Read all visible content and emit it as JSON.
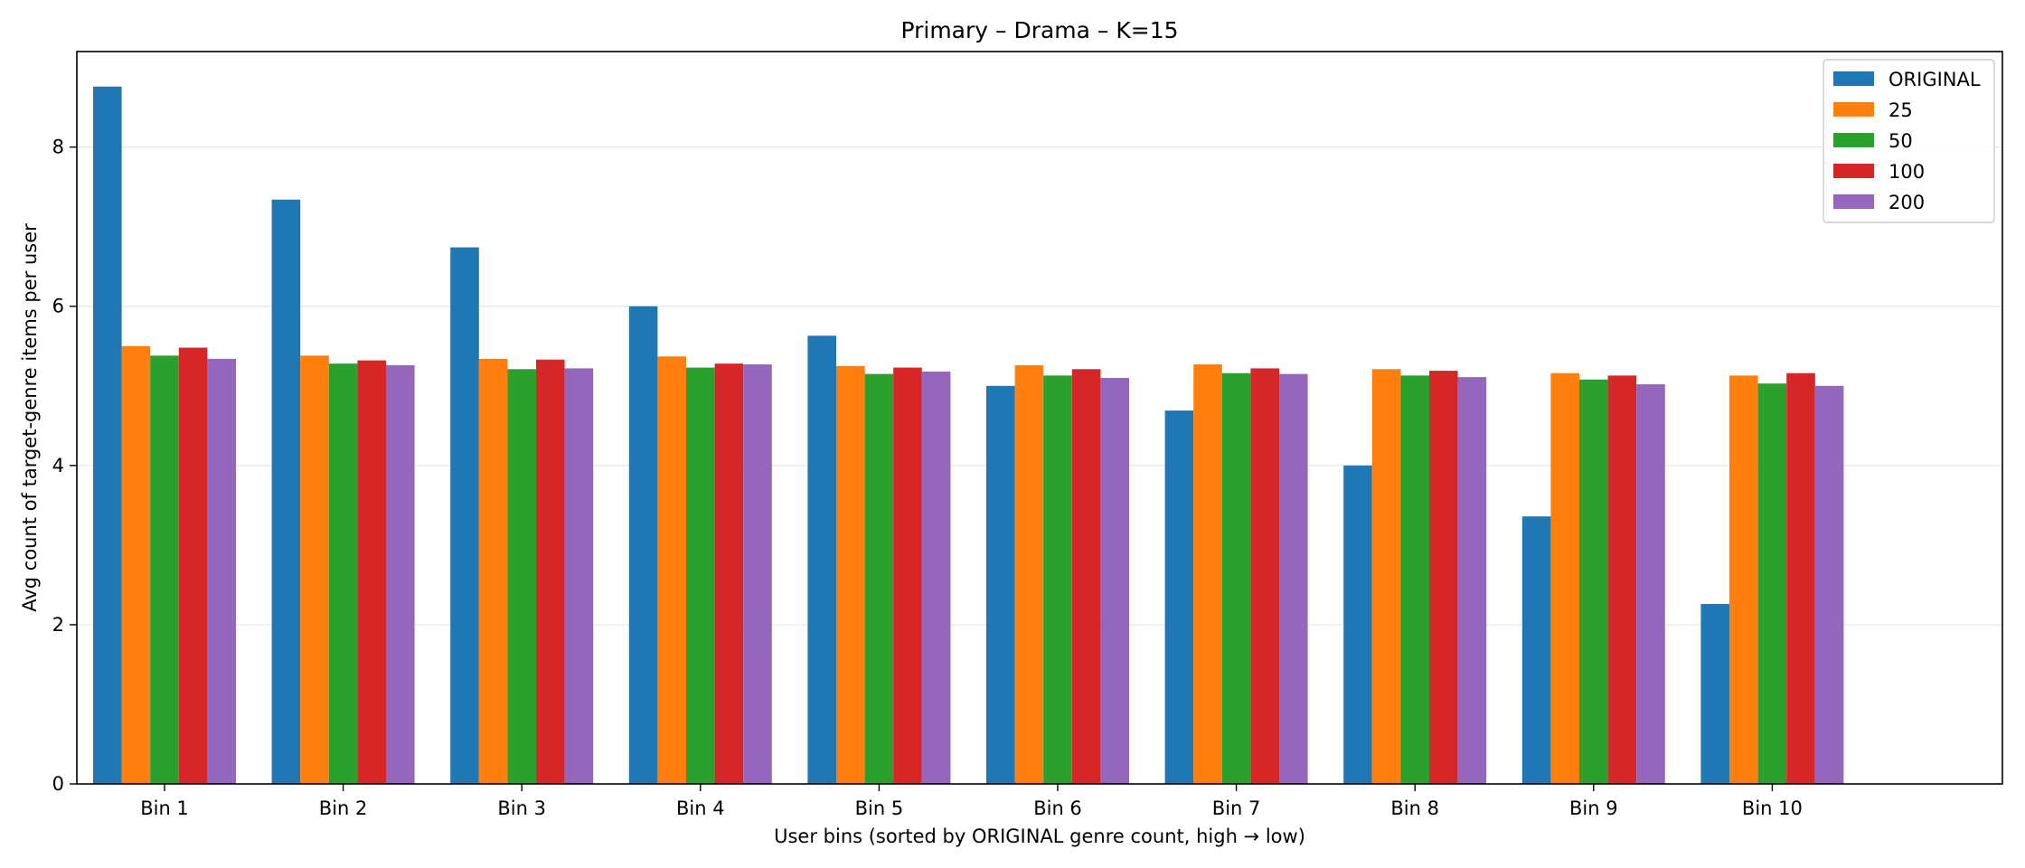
{
  "chart_data": {
    "type": "bar",
    "title": "Primary – Drama – K=15",
    "xlabel": "User bins (sorted by ORIGINAL genre count, high → low)",
    "ylabel": "Avg count of target-genre items per user",
    "ylim": [
      0,
      9.2
    ],
    "yticks": [
      0,
      2,
      4,
      6,
      8
    ],
    "grid": "y",
    "legend_position": "top-right",
    "categories": [
      "Bin 1",
      "Bin 2",
      "Bin 3",
      "Bin 4",
      "Bin 5",
      "Bin 6",
      "Bin 7",
      "Bin 8",
      "Bin 9",
      "Bin 10"
    ],
    "series": [
      {
        "name": "ORIGINAL",
        "color": "#1f77b4",
        "values": [
          8.76,
          7.34,
          6.74,
          6.0,
          5.63,
          5.0,
          4.69,
          4.0,
          3.36,
          2.26
        ]
      },
      {
        "name": "25",
        "color": "#ff7f0e",
        "values": [
          5.5,
          5.38,
          5.34,
          5.37,
          5.25,
          5.26,
          5.27,
          5.21,
          5.16,
          5.13
        ]
      },
      {
        "name": "50",
        "color": "#2ca02c",
        "values": [
          5.38,
          5.28,
          5.21,
          5.23,
          5.15,
          5.13,
          5.16,
          5.13,
          5.08,
          5.03
        ]
      },
      {
        "name": "100",
        "color": "#d62728",
        "values": [
          5.48,
          5.32,
          5.33,
          5.28,
          5.23,
          5.21,
          5.22,
          5.19,
          5.13,
          5.16
        ]
      },
      {
        "name": "200",
        "color": "#9467bd",
        "values": [
          5.34,
          5.26,
          5.22,
          5.27,
          5.18,
          5.1,
          5.15,
          5.11,
          5.02,
          5.0
        ]
      }
    ]
  }
}
